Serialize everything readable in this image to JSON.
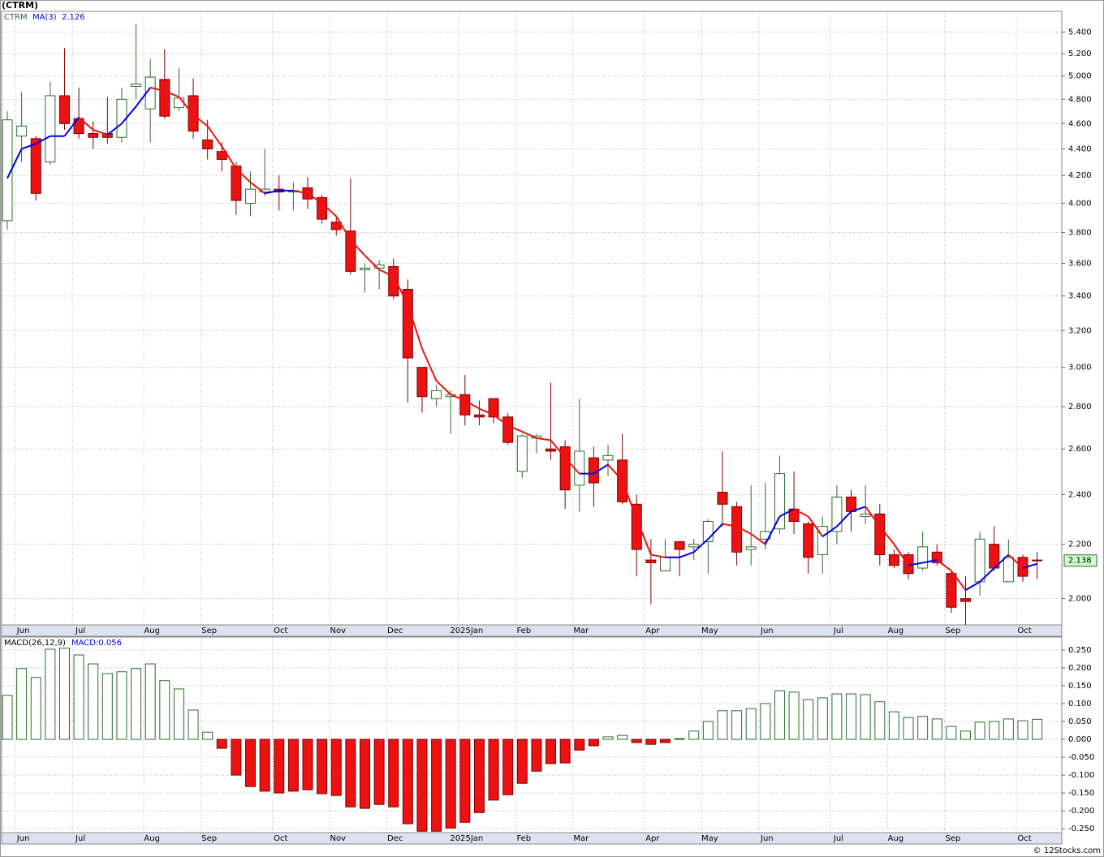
{
  "footer": "© 12Stocks.com",
  "chart_data": [
    {
      "type": "candlestick",
      "title": "(CTRM)",
      "name": "CTRM",
      "categories": [
        null,
        "Jun",
        null,
        null,
        null,
        "Jul",
        null,
        null,
        null,
        null,
        "Aug",
        null,
        null,
        null,
        "Sep",
        null,
        null,
        null,
        null,
        "Oct",
        null,
        null,
        null,
        "Nov",
        null,
        null,
        null,
        "Dec",
        null,
        null,
        null,
        null,
        "2025Jan",
        null,
        null,
        null,
        "Feb",
        null,
        null,
        null,
        "Mar",
        null,
        null,
        null,
        null,
        "Apr",
        null,
        null,
        null,
        "May",
        null,
        null,
        null,
        "Jun",
        null,
        null,
        null,
        null,
        "Jul",
        null,
        null,
        null,
        "Aug",
        null,
        null,
        null,
        "Sep",
        null,
        null,
        null,
        null,
        "Oct",
        null
      ],
      "open": [
        3.88,
        4.5,
        4.48,
        4.3,
        4.83,
        4.64,
        4.52,
        4.52,
        4.49,
        4.91,
        4.72,
        4.97,
        4.73,
        4.83,
        4.47,
        4.38,
        4.27,
        4.0,
        4.08,
        4.1,
        4.08,
        4.11,
        4.04,
        3.87,
        3.81,
        3.56,
        3.57,
        3.58,
        3.44,
        3.0,
        2.84,
        2.85,
        2.86,
        2.76,
        2.84,
        2.75,
        2.5,
        2.65,
        2.6,
        2.61,
        2.44,
        2.56,
        2.55,
        2.55,
        2.36,
        2.14,
        2.1,
        2.21,
        2.19,
        2.21,
        2.41,
        2.35,
        2.18,
        2.22,
        2.26,
        2.34,
        2.28,
        2.16,
        2.25,
        2.39,
        2.31,
        2.32,
        2.16,
        2.16,
        2.11,
        2.17,
        2.09,
        2.0,
        2.06,
        2.2,
        2.06,
        2.15,
        2.14
      ],
      "high": [
        4.7,
        4.86,
        4.5,
        4.95,
        5.25,
        4.9,
        4.62,
        4.82,
        4.9,
        5.48,
        5.15,
        5.24,
        5.07,
        4.98,
        4.63,
        4.45,
        4.3,
        4.23,
        4.4,
        4.2,
        4.15,
        4.19,
        4.06,
        3.9,
        4.18,
        3.6,
        3.62,
        3.63,
        3.5,
        3.0,
        2.91,
        2.88,
        2.96,
        2.83,
        2.84,
        2.77,
        2.67,
        2.67,
        2.92,
        2.64,
        2.84,
        2.61,
        2.62,
        2.67,
        2.4,
        2.22,
        2.22,
        2.21,
        2.22,
        2.3,
        2.59,
        2.37,
        2.44,
        2.45,
        2.57,
        2.5,
        2.29,
        2.31,
        2.44,
        2.42,
        2.44,
        2.36,
        2.18,
        2.17,
        2.25,
        2.2,
        2.1,
        2.08,
        2.25,
        2.27,
        2.22,
        2.16,
        2.17
      ],
      "low": [
        3.82,
        4.3,
        4.02,
        4.28,
        4.55,
        4.48,
        4.4,
        4.44,
        4.45,
        4.8,
        4.45,
        4.64,
        4.7,
        4.48,
        4.32,
        4.23,
        3.92,
        3.91,
        4.05,
        3.95,
        3.95,
        3.96,
        3.86,
        3.78,
        3.53,
        3.42,
        3.44,
        3.38,
        2.82,
        2.77,
        2.8,
        2.67,
        2.71,
        2.71,
        2.72,
        2.62,
        2.47,
        2.58,
        2.55,
        2.34,
        2.33,
        2.35,
        2.48,
        2.36,
        2.08,
        1.98,
        2.1,
        2.08,
        2.14,
        2.09,
        2.27,
        2.12,
        2.12,
        2.18,
        2.24,
        2.24,
        2.09,
        2.09,
        2.2,
        2.25,
        2.28,
        2.12,
        2.11,
        2.07,
        2.1,
        2.12,
        1.95,
        1.91,
        2.01,
        2.1,
        2.06,
        2.06,
        2.07
      ],
      "close": [
        4.63,
        4.58,
        4.07,
        4.83,
        4.6,
        4.52,
        4.49,
        4.49,
        4.8,
        4.93,
        4.99,
        4.66,
        4.81,
        4.54,
        4.4,
        4.32,
        4.02,
        4.1,
        4.1,
        4.08,
        4.09,
        4.03,
        3.89,
        3.82,
        3.55,
        3.57,
        3.59,
        3.4,
        3.05,
        2.85,
        2.88,
        2.86,
        2.76,
        2.75,
        2.75,
        2.63,
        2.66,
        2.66,
        2.59,
        2.42,
        2.59,
        2.45,
        2.57,
        2.37,
        2.18,
        2.13,
        2.15,
        2.18,
        2.2,
        2.29,
        2.36,
        2.17,
        2.19,
        2.25,
        2.49,
        2.29,
        2.15,
        2.27,
        2.39,
        2.33,
        2.32,
        2.16,
        2.12,
        2.09,
        2.19,
        2.13,
        1.97,
        1.99,
        2.22,
        2.11,
        2.15,
        2.08,
        2.138
      ],
      "up_color": "#ffffff",
      "up_edge_color": "#2e6b2e",
      "down_color": "#ee1111",
      "down_edge_color": "#7a0000",
      "last_close_label": "2.138",
      "ma": {
        "name": "MA(3)",
        "rise_color": "#0000dd",
        "fall_color": "#ee1111",
        "last_label": "2.126",
        "values": [
          4.18,
          4.4,
          4.44,
          4.5,
          4.5,
          4.65,
          4.55,
          4.51,
          4.6,
          4.74,
          4.9,
          4.87,
          4.82,
          4.67,
          4.58,
          4.42,
          4.25,
          4.15,
          4.07,
          4.09,
          4.09,
          4.07,
          4.0,
          3.91,
          3.75,
          3.65,
          3.56,
          3.52,
          3.35,
          3.1,
          2.93,
          2.86,
          2.83,
          2.79,
          2.76,
          2.71,
          2.68,
          2.65,
          2.64,
          2.56,
          2.49,
          2.49,
          2.53,
          2.46,
          2.3,
          2.16,
          2.15,
          2.15,
          2.17,
          2.22,
          2.28,
          2.27,
          2.24,
          2.2,
          2.31,
          2.34,
          2.31,
          2.23,
          2.27,
          2.33,
          2.35,
          2.27,
          2.2,
          2.12,
          2.13,
          2.14,
          2.1,
          2.03,
          2.06,
          2.11,
          2.16,
          2.11,
          2.126
        ]
      },
      "ylim": [
        1.91,
        5.6
      ],
      "log_scale": true,
      "grid": true,
      "yticks": [
        {
          "value": 2,
          "label": "2.000"
        },
        {
          "value": 2.2,
          "label": "2.200"
        },
        {
          "value": 2.4,
          "label": "2.400"
        },
        {
          "value": 2.6,
          "label": "2.600"
        },
        {
          "value": 2.8,
          "label": "2.800"
        },
        {
          "value": 3,
          "label": "3.000"
        },
        {
          "value": 3.2,
          "label": "3.200"
        },
        {
          "value": 3.4,
          "label": "3.400"
        },
        {
          "value": 3.6,
          "label": "3.600"
        },
        {
          "value": 3.8,
          "label": "3.800"
        },
        {
          "value": 4,
          "label": "4.000"
        },
        {
          "value": 4.2,
          "label": "4.200"
        },
        {
          "value": 4.4,
          "label": "4.400"
        },
        {
          "value": 4.6,
          "label": "4.600"
        },
        {
          "value": 4.8,
          "label": "4.800"
        },
        {
          "value": 5,
          "label": "5.000"
        },
        {
          "value": 5.2,
          "label": "5.200"
        },
        {
          "value": 5.4,
          "label": "5.400"
        }
      ]
    },
    {
      "type": "bar",
      "name": "MACD(26,12,9)",
      "last_label": "MACD:0.056",
      "categories": [
        null,
        "Jun",
        null,
        null,
        null,
        "Jul",
        null,
        null,
        null,
        null,
        "Aug",
        null,
        null,
        null,
        "Sep",
        null,
        null,
        null,
        null,
        "Oct",
        null,
        null,
        null,
        "Nov",
        null,
        null,
        null,
        "Dec",
        null,
        null,
        null,
        null,
        "2025Jan",
        null,
        null,
        null,
        "Feb",
        null,
        null,
        null,
        "Mar",
        null,
        null,
        null,
        null,
        "Apr",
        null,
        null,
        null,
        "May",
        null,
        null,
        null,
        "Jun",
        null,
        null,
        null,
        null,
        "Jul",
        null,
        null,
        null,
        "Aug",
        null,
        null,
        null,
        "Sep",
        null,
        null,
        null,
        null,
        "Oct",
        null
      ],
      "values": [
        0.123,
        0.198,
        0.173,
        0.252,
        0.255,
        0.236,
        0.211,
        0.184,
        0.189,
        0.198,
        0.211,
        0.164,
        0.141,
        0.082,
        0.02,
        -0.025,
        -0.1,
        -0.132,
        -0.145,
        -0.15,
        -0.145,
        -0.141,
        -0.152,
        -0.157,
        -0.189,
        -0.193,
        -0.182,
        -0.189,
        -0.236,
        -0.257,
        -0.257,
        -0.248,
        -0.232,
        -0.205,
        -0.17,
        -0.155,
        -0.123,
        -0.089,
        -0.068,
        -0.066,
        -0.03,
        -0.018,
        0.007,
        0.011,
        -0.009,
        -0.014,
        -0.009,
        0.002,
        0.023,
        0.05,
        0.08,
        0.08,
        0.086,
        0.1,
        0.136,
        0.132,
        0.111,
        0.116,
        0.127,
        0.127,
        0.125,
        0.105,
        0.077,
        0.061,
        0.064,
        0.057,
        0.036,
        0.023,
        0.048,
        0.05,
        0.057,
        0.052,
        0.056
      ],
      "positive_color": "#ffffff",
      "positive_edge_color": "#2e6b2e",
      "negative_color": "#ee1111",
      "negative_edge_color": "#7a0000",
      "ylim": [
        -0.261,
        0.286
      ],
      "grid": true,
      "yticks": [
        {
          "value": -0.25,
          "label": "-0.250"
        },
        {
          "value": -0.2,
          "label": "-0.200"
        },
        {
          "value": -0.15,
          "label": "-0.150"
        },
        {
          "value": -0.1,
          "label": "-0.100"
        },
        {
          "value": -0.05,
          "label": "-0.050"
        },
        {
          "value": 0,
          "label": "0.000"
        },
        {
          "value": 0.05,
          "label": "0.050"
        },
        {
          "value": 0.1,
          "label": "0.100"
        },
        {
          "value": 0.15,
          "label": "0.150"
        },
        {
          "value": 0.2,
          "label": "0.200"
        },
        {
          "value": 0.25,
          "label": "0.250"
        }
      ]
    }
  ]
}
